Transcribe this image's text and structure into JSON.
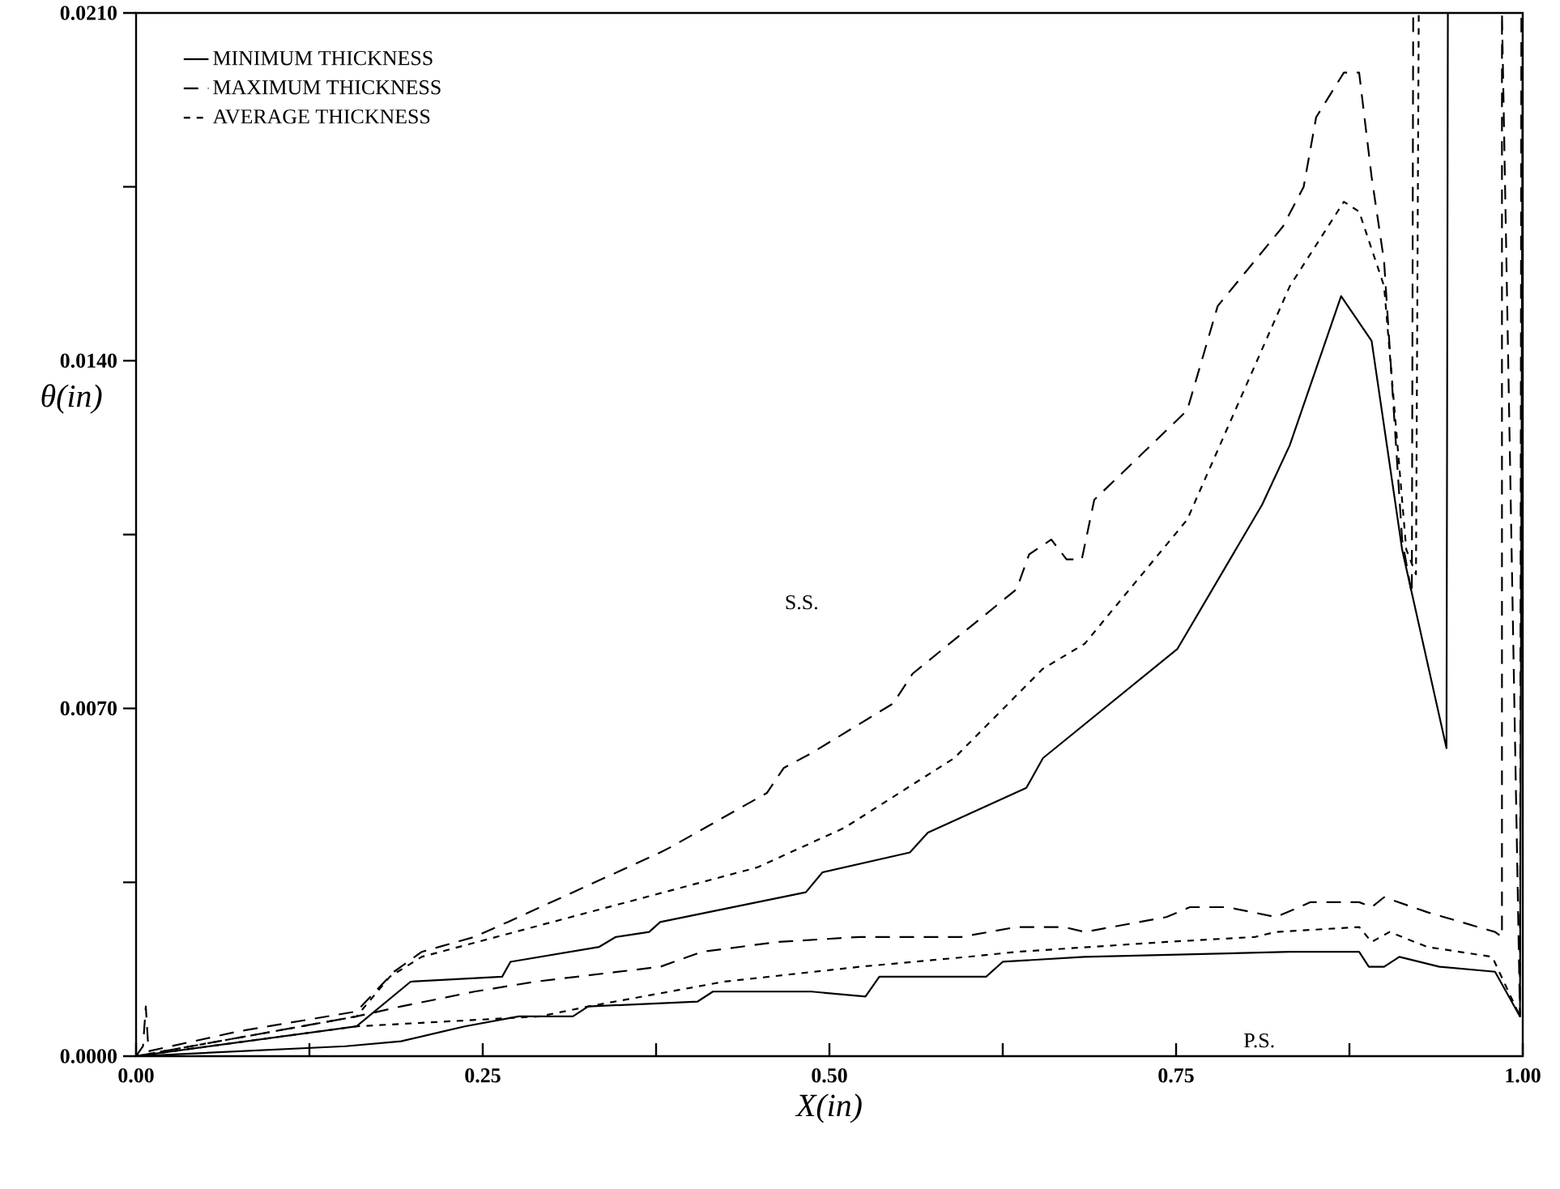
{
  "chart_data": {
    "type": "line",
    "xlabel": "X(in)",
    "ylabel": "θ(in)",
    "legend": "top left",
    "xlim": [
      0,
      1
    ],
    "ylim": [
      0,
      0.021
    ],
    "xticks": [
      {
        "value": 0,
        "label": "0.00"
      },
      {
        "value": 0.125,
        "label": null
      },
      {
        "value": 0.25,
        "label": "0.25"
      },
      {
        "value": 0.375,
        "label": null
      },
      {
        "value": 0.5,
        "label": "0.50"
      },
      {
        "value": 0.625,
        "label": null
      },
      {
        "value": 0.75,
        "label": "0.75"
      },
      {
        "value": 0.875,
        "label": null
      },
      {
        "value": 1,
        "label": "1.00"
      }
    ],
    "yticks": [
      {
        "value": 0,
        "label": "0.0000"
      },
      {
        "value": 0.0035,
        "label": null
      },
      {
        "value": 0.007,
        "label": "0.0070"
      },
      {
        "value": 0.0105,
        "label": null
      },
      {
        "value": 0.014,
        "label": "0.0140"
      },
      {
        "value": 0.0175,
        "label": null
      },
      {
        "value": 0.021,
        "label": "0.0210"
      }
    ],
    "annotations": [
      "S.S.",
      "P.S."
    ],
    "series": [
      {
        "name": "MINIMUM THICKNESS",
        "color": "#000000",
        "line_style": "solid",
        "x": [
          0,
          0.159,
          0.198,
          0.264,
          0.27,
          0.334,
          0.346,
          0.37,
          0.378,
          0.483,
          0.495,
          0.558,
          0.571,
          0.642,
          0.654,
          0.751,
          0.812,
          0.832,
          0.869,
          0.891,
          0.913,
          0.945,
          0.946
        ],
        "values": [
          0,
          0.0006,
          0.0015,
          0.0016,
          0.0019,
          0.0022,
          0.0024,
          0.0025,
          0.0027,
          0.0033,
          0.0037,
          0.0041,
          0.0045,
          0.0054,
          0.006,
          0.0082,
          0.0111,
          0.0123,
          0.0153,
          0.0144,
          0.0102,
          0.0062,
          0.021
        ]
      },
      {
        "name": "MAXIMUM THICKNESS",
        "color": "#000000",
        "line_style": "dashed",
        "x": [
          0,
          0.005,
          0.007,
          0.009,
          0.074,
          0.159,
          0.186,
          0.206,
          0.244,
          0.268,
          0.378,
          0.385,
          0.455,
          0.467,
          0.487,
          0.546,
          0.56,
          0.635,
          0.644,
          0.66,
          0.671,
          0.682,
          0.691,
          0.758,
          0.78,
          0.827,
          0.842,
          0.851,
          0.871,
          0.882,
          0.891,
          0.9,
          0.913,
          0.92,
          0.921
        ],
        "values": [
          0,
          0.0002,
          0.001,
          0.0001,
          0.0005,
          0.0009,
          0.0017,
          0.0021,
          0.0024,
          0.0027,
          0.0041,
          0.0042,
          0.0053,
          0.0058,
          0.0061,
          0.0071,
          0.0077,
          0.0094,
          0.0101,
          0.0104,
          0.01,
          0.01,
          0.0112,
          0.013,
          0.0151,
          0.0167,
          0.0175,
          0.0189,
          0.0198,
          0.0198,
          0.0177,
          0.016,
          0.0104,
          0.0093,
          0.021
        ]
      },
      {
        "name": "AVERAGE THICKNESS",
        "color": "#000000",
        "line_style": "dotted",
        "x": [
          0,
          0.159,
          0.183,
          0.206,
          0.448,
          0.511,
          0.59,
          0.654,
          0.684,
          0.758,
          0.832,
          0.871,
          0.882,
          0.9,
          0.916,
          0.923,
          0.925
        ],
        "values": [
          0,
          0.0008,
          0.0016,
          0.002,
          0.0038,
          0.0046,
          0.006,
          0.0078,
          0.0083,
          0.0108,
          0.0155,
          0.0172,
          0.017,
          0.0155,
          0.0102,
          0.0097,
          0.021
        ]
      },
      {
        "color": "#000000",
        "line_style": "solid",
        "x": [
          0,
          0.151,
          0.191,
          0.237,
          0.276,
          0.315,
          0.326,
          0.405,
          0.416,
          0.487,
          0.526,
          0.536,
          0.613,
          0.625,
          0.684,
          0.832,
          0.882,
          0.889,
          0.9,
          0.911,
          0.94,
          0.98,
          0.998,
          1.0
        ],
        "values": [
          0,
          0.0002,
          0.0003,
          0.0006,
          0.0008,
          0.0008,
          0.001,
          0.0011,
          0.0013,
          0.0013,
          0.0012,
          0.0016,
          0.0016,
          0.0019,
          0.002,
          0.0021,
          0.0021,
          0.0018,
          0.0018,
          0.002,
          0.0018,
          0.0017,
          0.0008,
          0.021
        ]
      },
      {
        "color": "#000000",
        "line_style": "dashed",
        "x": [
          0,
          0.159,
          0.191,
          0.244,
          0.288,
          0.378,
          0.408,
          0.463,
          0.522,
          0.595,
          0.635,
          0.669,
          0.684,
          0.743,
          0.76,
          0.787,
          0.822,
          0.847,
          0.882,
          0.891,
          0.9,
          0.931,
          0.98,
          0.985,
          0.985,
          0.998,
          0.999
        ],
        "values": [
          0,
          0.0008,
          0.001,
          0.0013,
          0.0015,
          0.0018,
          0.0021,
          0.0023,
          0.0024,
          0.0024,
          0.0026,
          0.0026,
          0.0025,
          0.0028,
          0.003,
          0.003,
          0.0028,
          0.0031,
          0.0031,
          0.003,
          0.0032,
          0.0029,
          0.0025,
          0.0024,
          0.021,
          0.0008,
          0.021
        ]
      },
      {
        "color": "#000000",
        "line_style": "dotted",
        "x": [
          0,
          0.159,
          0.291,
          0.326,
          0.424,
          0.522,
          0.6,
          0.635,
          0.743,
          0.807,
          0.822,
          0.882,
          0.891,
          0.904,
          0.931,
          0.978,
          0.998
        ],
        "values": [
          0,
          0.0006,
          0.0008,
          0.001,
          0.0015,
          0.0018,
          0.002,
          0.0021,
          0.0023,
          0.0024,
          0.0025,
          0.0026,
          0.0023,
          0.0025,
          0.0022,
          0.002,
          0.0008
        ]
      }
    ]
  }
}
